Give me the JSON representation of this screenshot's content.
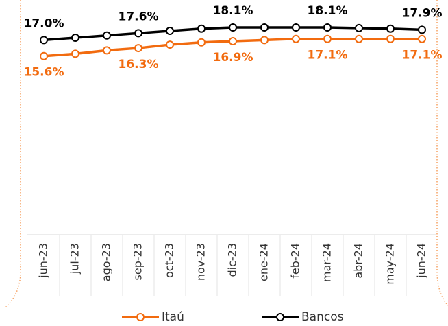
{
  "chart_data": {
    "type": "line",
    "categories": [
      "jun-23",
      "jul-23",
      "ago-23",
      "sep-23",
      "oct-23",
      "nov-23",
      "dic-23",
      "ene-24",
      "feb-24",
      "mar-24",
      "abr-24",
      "may-24",
      "jun-24"
    ],
    "ylim": [
      0,
      20.5
    ],
    "series": [
      {
        "name": "Itaú",
        "color": "#f26b0f",
        "values": [
          15.6,
          15.8,
          16.1,
          16.3,
          16.6,
          16.8,
          16.9,
          17.0,
          17.1,
          17.1,
          17.1,
          17.1,
          17.1
        ],
        "value_labels": [
          "15.6%",
          null,
          null,
          "16.3%",
          null,
          null,
          "16.9%",
          null,
          null,
          "17.1%",
          null,
          null,
          "17.1%"
        ]
      },
      {
        "name": "Bancos",
        "color": "#000000",
        "values": [
          17.0,
          17.2,
          17.4,
          17.6,
          17.8,
          18.0,
          18.1,
          18.1,
          18.1,
          18.1,
          18.05,
          18.0,
          17.9
        ],
        "value_labels": [
          "17.0%",
          null,
          null,
          "17.6%",
          null,
          null,
          "18.1%",
          null,
          null,
          "18.1%",
          null,
          null,
          "17.9%"
        ]
      }
    ]
  }
}
